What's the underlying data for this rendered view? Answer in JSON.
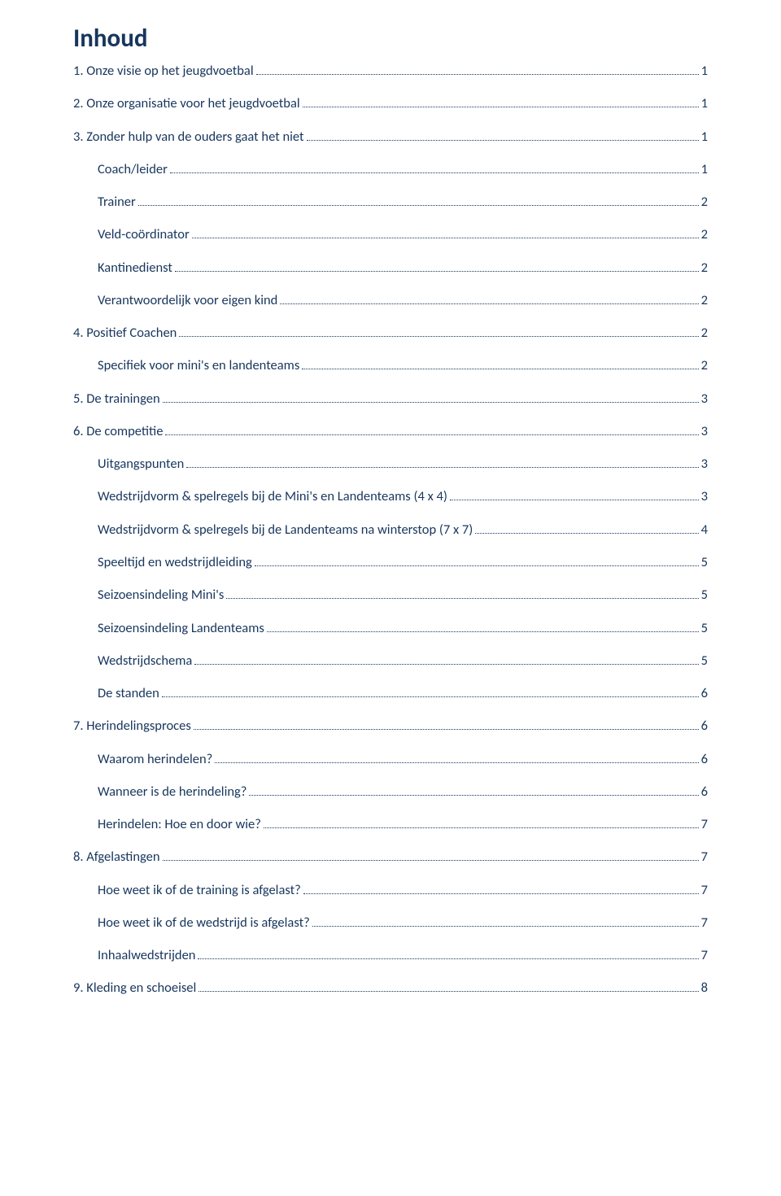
{
  "title": "Inhoud",
  "colors": {
    "heading": "#17365d",
    "toc_text": "#17365d",
    "dots": "#17365d",
    "background": "#ffffff"
  },
  "typography": {
    "title_fontsize_pt": 24,
    "toc_fontsize_pt": 12,
    "font_family": "Calibri"
  },
  "toc": [
    {
      "label": "1. Onze visie op het jeugdvoetbal",
      "page": "1",
      "level": 0,
      "spaced": false
    },
    {
      "label": "2. Onze organisatie voor het jeugdvoetbal",
      "page": "1",
      "level": 0,
      "spaced": true
    },
    {
      "label": "3. Zonder hulp van de ouders gaat het niet",
      "page": "1",
      "level": 0,
      "spaced": true
    },
    {
      "label": "Coach/leider",
      "page": "1",
      "level": 1,
      "spaced": true
    },
    {
      "label": "Trainer",
      "page": "2",
      "level": 1,
      "spaced": true
    },
    {
      "label": "Veld-coördinator",
      "page": "2",
      "level": 1,
      "spaced": true
    },
    {
      "label": "Kantinedienst",
      "page": "2",
      "level": 1,
      "spaced": true
    },
    {
      "label": "Verantwoordelijk voor eigen kind",
      "page": "2",
      "level": 1,
      "spaced": true
    },
    {
      "label": "4. Positief Coachen",
      "page": "2",
      "level": 0,
      "spaced": true
    },
    {
      "label": "Specifiek voor mini's en landenteams",
      "page": "2",
      "level": 1,
      "spaced": true
    },
    {
      "label": "5. De trainingen",
      "page": "3",
      "level": 0,
      "spaced": true
    },
    {
      "label": "6. De competitie",
      "page": "3",
      "level": 0,
      "spaced": true
    },
    {
      "label": "Uitgangspunten",
      "page": "3",
      "level": 1,
      "spaced": true
    },
    {
      "label": "Wedstrijdvorm & spelregels bij de Mini's en Landenteams (4 x 4)",
      "page": "3",
      "level": 1,
      "spaced": true
    },
    {
      "label": "Wedstrijdvorm & spelregels bij de Landenteams na winterstop (7 x 7)",
      "page": "4",
      "level": 1,
      "spaced": true
    },
    {
      "label": "Speeltijd en wedstrijdleiding",
      "page": "5",
      "level": 1,
      "spaced": true
    },
    {
      "label": "Seizoensindeling Mini's",
      "page": "5",
      "level": 1,
      "spaced": true
    },
    {
      "label": "Seizoensindeling Landenteams",
      "page": "5",
      "level": 1,
      "spaced": true
    },
    {
      "label": "Wedstrijdschema",
      "page": "5",
      "level": 1,
      "spaced": true
    },
    {
      "label": "De standen",
      "page": "6",
      "level": 1,
      "spaced": true
    },
    {
      "label": "7. Herindelingsproces",
      "page": "6",
      "level": 0,
      "spaced": true
    },
    {
      "label": "Waarom herindelen?",
      "page": "6",
      "level": 1,
      "spaced": true
    },
    {
      "label": "Wanneer is de herindeling?",
      "page": "6",
      "level": 1,
      "spaced": true
    },
    {
      "label": "Herindelen: Hoe en door wie?",
      "page": "7",
      "level": 1,
      "spaced": true
    },
    {
      "label": "8. Afgelastingen",
      "page": "7",
      "level": 0,
      "spaced": true
    },
    {
      "label": "Hoe weet ik of de training is afgelast?",
      "page": "7",
      "level": 1,
      "spaced": true
    },
    {
      "label": "Hoe weet ik of de wedstrijd is afgelast?",
      "page": "7",
      "level": 1,
      "spaced": true
    },
    {
      "label": "Inhaalwedstrijden",
      "page": "7",
      "level": 1,
      "spaced": true
    },
    {
      "label": "9. Kleding en schoeisel",
      "page": "8",
      "level": 0,
      "spaced": true
    }
  ]
}
